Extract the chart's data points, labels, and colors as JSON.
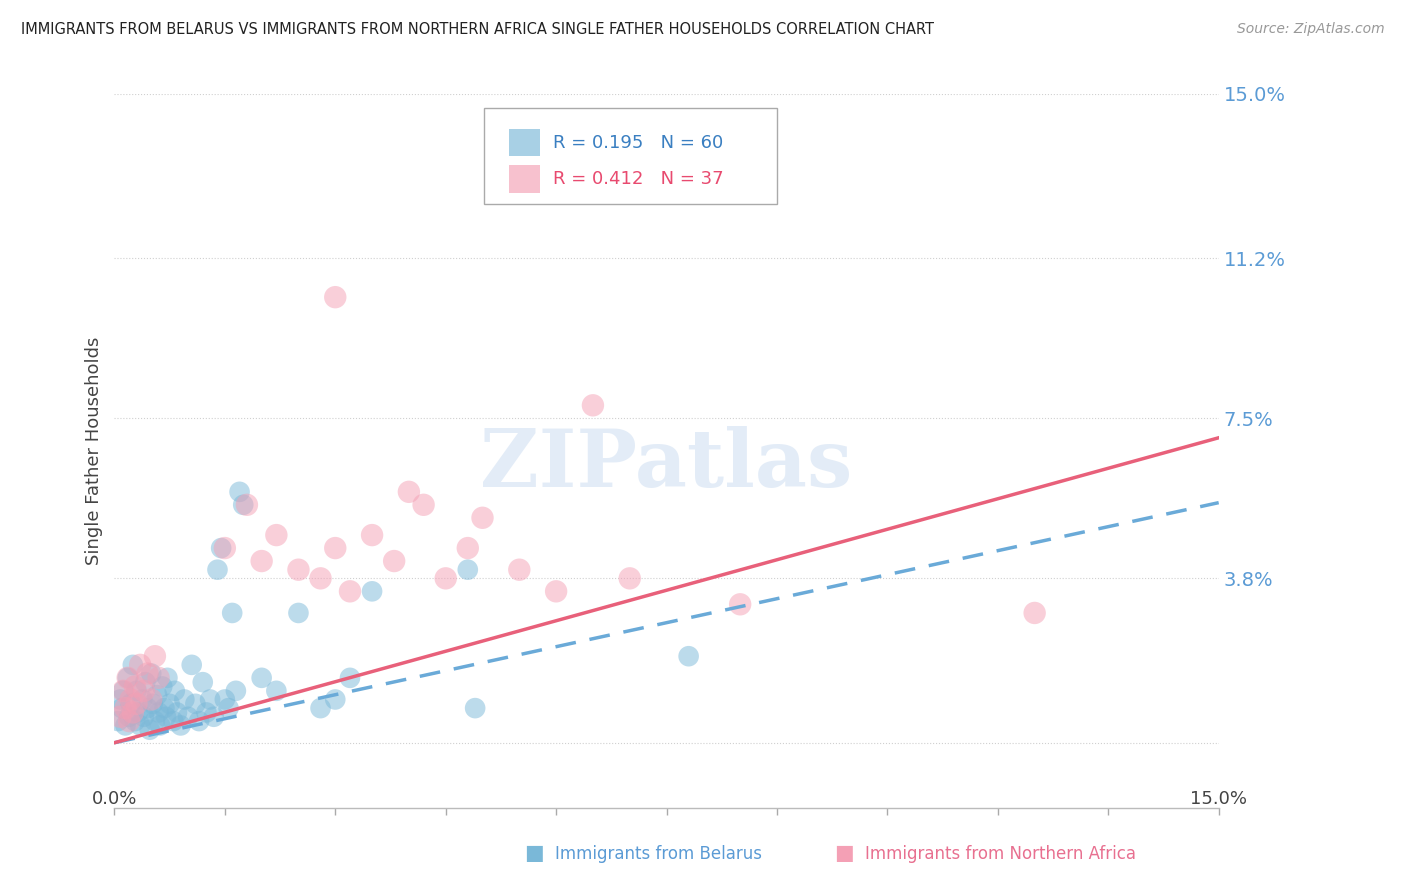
{
  "title": "IMMIGRANTS FROM BELARUS VS IMMIGRANTS FROM NORTHERN AFRICA SINGLE FATHER HOUSEHOLDS CORRELATION CHART",
  "source": "Source: ZipAtlas.com",
  "ylabel": "Single Father Households",
  "xlim": [
    0.0,
    15.0
  ],
  "ylim": [
    -1.5,
    15.0
  ],
  "yticks": [
    0.0,
    3.8,
    7.5,
    11.2,
    15.0
  ],
  "ytick_labels": [
    "",
    "3.8%",
    "7.5%",
    "11.2%",
    "15.0%"
  ],
  "xtick_positions": [
    0,
    1.5,
    3.0,
    4.5,
    6.0,
    7.5,
    9.0,
    10.5,
    12.0,
    13.5,
    15.0
  ],
  "background_color": "#ffffff",
  "grid_color": "#d0d0d0",
  "legend": {
    "R_belarus": "0.195",
    "N_belarus": "60",
    "R_northern_africa": "0.412",
    "N_northern_africa": "37"
  },
  "color_belarus": "#7ab8d8",
  "color_northern_africa": "#f4a0b5",
  "color_belarus_line": "#6aaad8",
  "color_na_line": "#e8607a",
  "watermark": "ZIPatlas",
  "belarus_scatter": [
    [
      0.05,
      0.5
    ],
    [
      0.08,
      1.0
    ],
    [
      0.1,
      0.8
    ],
    [
      0.12,
      1.2
    ],
    [
      0.15,
      0.4
    ],
    [
      0.18,
      1.5
    ],
    [
      0.2,
      0.6
    ],
    [
      0.22,
      0.9
    ],
    [
      0.25,
      1.8
    ],
    [
      0.28,
      0.5
    ],
    [
      0.3,
      1.2
    ],
    [
      0.32,
      0.7
    ],
    [
      0.35,
      0.4
    ],
    [
      0.38,
      1.0
    ],
    [
      0.4,
      0.6
    ],
    [
      0.42,
      1.4
    ],
    [
      0.45,
      0.8
    ],
    [
      0.48,
      0.3
    ],
    [
      0.5,
      1.6
    ],
    [
      0.52,
      0.9
    ],
    [
      0.55,
      0.5
    ],
    [
      0.58,
      1.1
    ],
    [
      0.6,
      0.7
    ],
    [
      0.62,
      0.4
    ],
    [
      0.65,
      1.3
    ],
    [
      0.68,
      0.8
    ],
    [
      0.7,
      0.6
    ],
    [
      0.72,
      1.5
    ],
    [
      0.75,
      0.9
    ],
    [
      0.8,
      0.5
    ],
    [
      0.82,
      1.2
    ],
    [
      0.85,
      0.7
    ],
    [
      0.9,
      0.4
    ],
    [
      0.95,
      1.0
    ],
    [
      1.0,
      0.6
    ],
    [
      1.05,
      1.8
    ],
    [
      1.1,
      0.9
    ],
    [
      1.15,
      0.5
    ],
    [
      1.2,
      1.4
    ],
    [
      1.25,
      0.7
    ],
    [
      1.3,
      1.0
    ],
    [
      1.35,
      0.6
    ],
    [
      1.4,
      4.0
    ],
    [
      1.45,
      4.5
    ],
    [
      1.5,
      1.0
    ],
    [
      1.55,
      0.8
    ],
    [
      1.6,
      3.0
    ],
    [
      1.65,
      1.2
    ],
    [
      1.7,
      5.8
    ],
    [
      1.75,
      5.5
    ],
    [
      2.0,
      1.5
    ],
    [
      2.2,
      1.2
    ],
    [
      2.5,
      3.0
    ],
    [
      2.8,
      0.8
    ],
    [
      3.0,
      1.0
    ],
    [
      3.2,
      1.5
    ],
    [
      3.5,
      3.5
    ],
    [
      4.8,
      4.0
    ],
    [
      4.9,
      0.8
    ],
    [
      7.8,
      2.0
    ]
  ],
  "northern_africa_scatter": [
    [
      0.08,
      0.6
    ],
    [
      0.12,
      1.2
    ],
    [
      0.15,
      0.8
    ],
    [
      0.18,
      1.5
    ],
    [
      0.2,
      0.5
    ],
    [
      0.22,
      1.0
    ],
    [
      0.25,
      0.7
    ],
    [
      0.28,
      1.3
    ],
    [
      0.3,
      0.9
    ],
    [
      0.35,
      1.8
    ],
    [
      0.4,
      1.2
    ],
    [
      0.45,
      1.6
    ],
    [
      0.5,
      1.0
    ],
    [
      0.55,
      2.0
    ],
    [
      0.6,
      1.5
    ],
    [
      1.5,
      4.5
    ],
    [
      1.8,
      5.5
    ],
    [
      2.0,
      4.2
    ],
    [
      2.2,
      4.8
    ],
    [
      2.5,
      4.0
    ],
    [
      2.8,
      3.8
    ],
    [
      3.0,
      4.5
    ],
    [
      3.2,
      3.5
    ],
    [
      3.5,
      4.8
    ],
    [
      3.8,
      4.2
    ],
    [
      4.0,
      5.8
    ],
    [
      4.2,
      5.5
    ],
    [
      4.5,
      3.8
    ],
    [
      4.8,
      4.5
    ],
    [
      5.0,
      5.2
    ],
    [
      5.5,
      4.0
    ],
    [
      6.0,
      3.5
    ],
    [
      6.5,
      7.8
    ],
    [
      7.0,
      3.8
    ],
    [
      3.0,
      10.3
    ],
    [
      8.5,
      3.2
    ],
    [
      12.5,
      3.0
    ]
  ]
}
